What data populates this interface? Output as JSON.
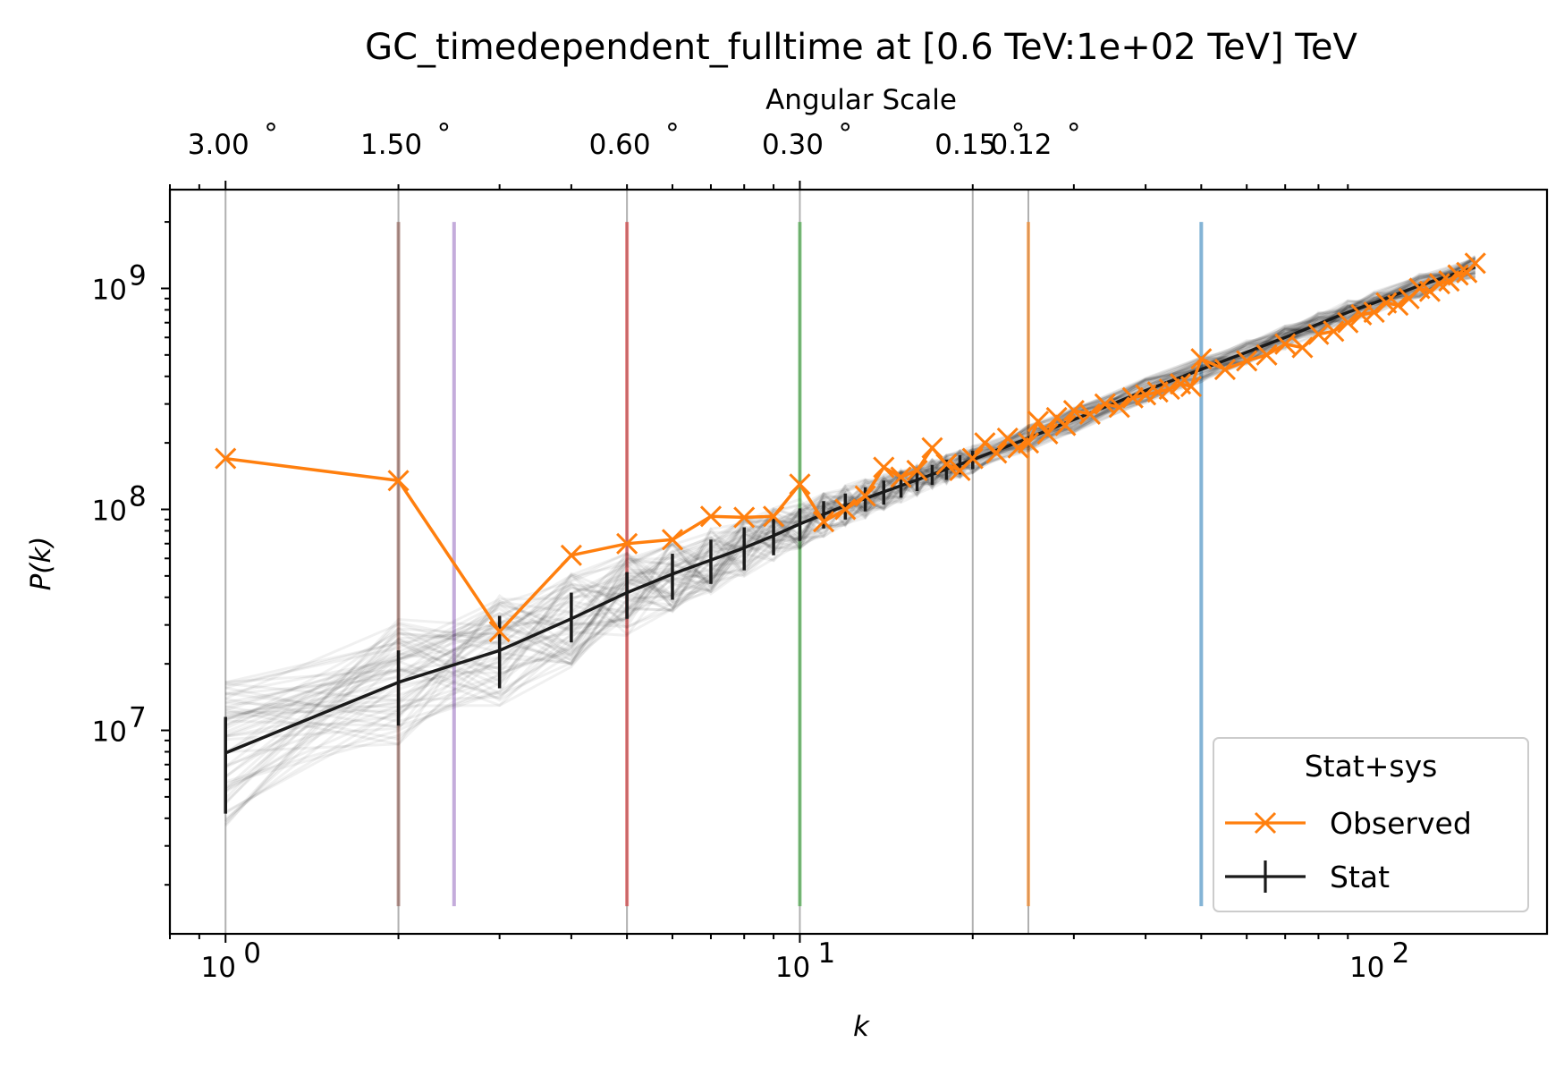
{
  "chart_data": {
    "type": "line",
    "title": "GC_timedependent_fulltime at [0.6 TeV:1e+02 TeV] TeV",
    "xlabel": "k",
    "ylabel": "P(k)",
    "x_scale": "log",
    "y_scale": "log",
    "xlim": [
      0.8,
      200
    ],
    "ylim": [
      1200000,
      2800000000
    ],
    "x_ticks": [
      {
        "value": 1,
        "label": "10",
        "exp": "0"
      },
      {
        "value": 10,
        "label": "10",
        "exp": "1"
      },
      {
        "value": 100,
        "label": "10",
        "exp": "2"
      }
    ],
    "y_ticks": [
      {
        "value": 10000000,
        "label": "10",
        "exp": "7"
      },
      {
        "value": 100000000,
        "label": "10",
        "exp": "8"
      },
      {
        "value": 1000000000,
        "label": "10",
        "exp": "9"
      }
    ],
    "top_axis": {
      "label": "Angular Scale",
      "ticks": [
        {
          "k": 1,
          "label": "3.00",
          "unit": "°"
        },
        {
          "k": 2,
          "label": "1.50",
          "unit": "°"
        },
        {
          "k": 5,
          "label": "0.60",
          "unit": "°"
        },
        {
          "k": 10,
          "label": "0.30",
          "unit": "°"
        },
        {
          "k": 20,
          "label": "0.15",
          "unit": "°"
        },
        {
          "k": 25,
          "label": "0.12",
          "unit": "°"
        }
      ]
    },
    "vertical_lines": [
      {
        "k": 1,
        "color": "#b0b0b0"
      },
      {
        "k": 2,
        "color": "#b0b0b0"
      },
      {
        "k": 5,
        "color": "#b0b0b0"
      },
      {
        "k": 10,
        "color": "#b0b0b0"
      },
      {
        "k": 20,
        "color": "#b0b0b0"
      },
      {
        "k": 25,
        "color": "#b0b0b0"
      },
      {
        "k": 2,
        "color": "#8c564b"
      },
      {
        "k": 2.5,
        "color": "#9467bd"
      },
      {
        "k": 5,
        "color": "#d62728"
      },
      {
        "k": 10,
        "color": "#2ca02c"
      },
      {
        "k": 25,
        "color": "#ff7f0e"
      },
      {
        "k": 50,
        "color": "#1f77b4"
      }
    ],
    "observed": {
      "k": [
        1,
        2,
        3,
        4,
        5,
        6,
        7,
        8,
        9,
        10,
        11,
        12,
        13,
        14,
        15,
        16,
        17,
        18,
        19,
        20,
        21,
        22,
        23,
        24,
        25,
        26,
        27,
        28,
        29,
        30,
        32,
        34,
        36,
        38,
        40,
        42,
        44,
        46,
        48,
        50,
        55,
        60,
        65,
        70,
        75,
        80,
        85,
        90,
        95,
        100,
        105,
        110,
        115,
        120,
        125,
        130,
        135,
        140,
        145,
        150
      ],
      "pk": [
        170000000,
        135000000,
        28000000,
        62000000,
        70000000,
        73000000,
        93000000,
        92000000,
        93000000,
        130000000,
        88000000,
        100000000,
        115000000,
        155000000,
        140000000,
        150000000,
        190000000,
        160000000,
        150000000,
        170000000,
        200000000,
        180000000,
        210000000,
        190000000,
        200000000,
        250000000,
        220000000,
        260000000,
        240000000,
        280000000,
        270000000,
        300000000,
        290000000,
        320000000,
        330000000,
        340000000,
        350000000,
        370000000,
        360000000,
        480000000,
        430000000,
        470000000,
        500000000,
        560000000,
        540000000,
        620000000,
        640000000,
        700000000,
        760000000,
        780000000,
        860000000,
        840000000,
        900000000,
        1000000000,
        970000000,
        1050000000,
        1080000000,
        1150000000,
        1180000000,
        1300000000
      ]
    },
    "stat": {
      "k": [
        1,
        2,
        3,
        4,
        5,
        6,
        7,
        8,
        9,
        10,
        11,
        12,
        13,
        14,
        15,
        16,
        17,
        18,
        19,
        20,
        25,
        30,
        40,
        50,
        60,
        70,
        80,
        90,
        100,
        120,
        150
      ],
      "pk": [
        7900000,
        16500000,
        23000000,
        32000000,
        42000000,
        51000000,
        59000000,
        67000000,
        76000000,
        86000000,
        95000000,
        104000000,
        112000000,
        120000000,
        128000000,
        136000000,
        144000000,
        152000000,
        160000000,
        168000000,
        210000000,
        255000000,
        345000000,
        430000000,
        515000000,
        600000000,
        690000000,
        780000000,
        860000000,
        1030000000,
        1250000000
      ],
      "err_low": [
        4200000,
        10500000,
        15500000,
        25000000,
        32000000,
        39000000,
        46000000,
        53000000,
        62000000,
        72000000,
        82000000,
        90000000,
        98000000,
        105000000,
        113000000,
        121000000,
        129000000,
        136000000,
        144000000,
        152000000
      ],
      "err_high": [
        11500000,
        23000000,
        33000000,
        42000000,
        52000000,
        63000000,
        73000000,
        83000000,
        91000000,
        101000000,
        109000000,
        118000000,
        126000000,
        135000000,
        143000000,
        151000000,
        159000000,
        168000000,
        176000000,
        184000000
      ]
    },
    "legend": {
      "title": "Stat+sys",
      "position": "lower-right",
      "entries": [
        {
          "label": "Observed",
          "color": "#ff7f0e",
          "marker": "x"
        },
        {
          "label": "Stat",
          "color": "#1a1a1a",
          "marker": "errorbar"
        }
      ]
    },
    "colors": {
      "observed": "#ff7f0e",
      "stat": "#1a1a1a",
      "samples": "#000000"
    }
  }
}
